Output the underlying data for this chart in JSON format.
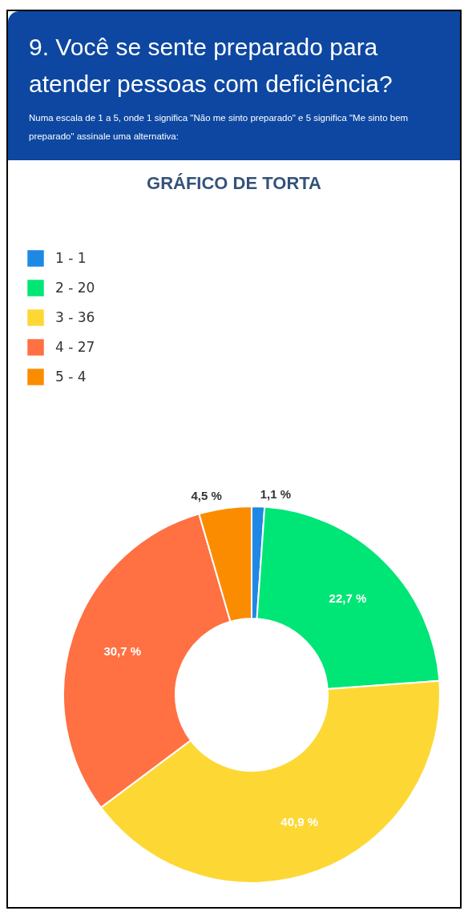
{
  "chart_data": {
    "type": "donut",
    "title": "9. Você se sente preparado para atender pessoas com deficiência?",
    "subtitle": "Numa escala de 1 a 5, onde 1 significa \"Não me sinto preparado\" e 5 significa \"Me sinto bem preparado\" assinale uma alternativa:",
    "annotations": [
      "GRÁFICO DE TORTA"
    ],
    "categories": [
      "1 - 1",
      "2 - 20",
      "3 - 36",
      "4 - 27",
      "5 - 4"
    ],
    "values": [
      1.1,
      22.7,
      40.9,
      30.7,
      4.5
    ],
    "value_labels": [
      "1,1 %",
      "22,7 %",
      "40,9 %",
      "30,7 %",
      "4,5 %"
    ],
    "colors": [
      "#1e88e5",
      "#00e676",
      "#fdd835",
      "#ff7043",
      "#fb8c00"
    ],
    "legend": "top left"
  }
}
